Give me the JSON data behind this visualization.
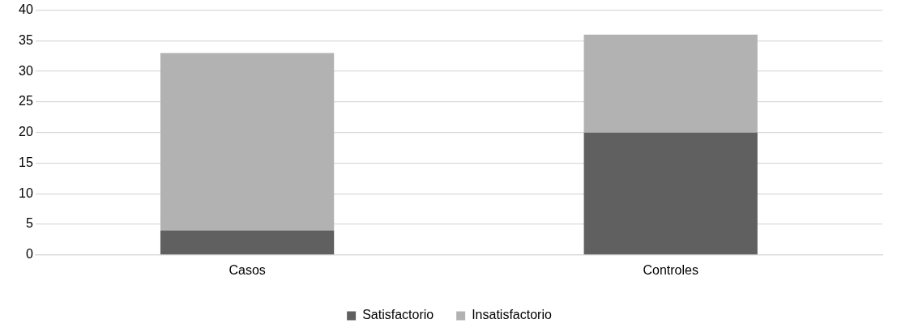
{
  "chart_data": {
    "type": "bar",
    "stacked": true,
    "categories": [
      "Casos",
      "Controles"
    ],
    "series": [
      {
        "name": "Satisfactorio",
        "color": "#606060",
        "values": [
          4,
          20
        ]
      },
      {
        "name": "Insatisfactorio",
        "color": "#b2b2b2",
        "values": [
          29,
          16
        ]
      }
    ],
    "ylim": [
      0,
      40
    ],
    "yticks": [
      0,
      5,
      10,
      15,
      20,
      25,
      30,
      35,
      40
    ],
    "grid": "y",
    "legend": "bottom"
  }
}
